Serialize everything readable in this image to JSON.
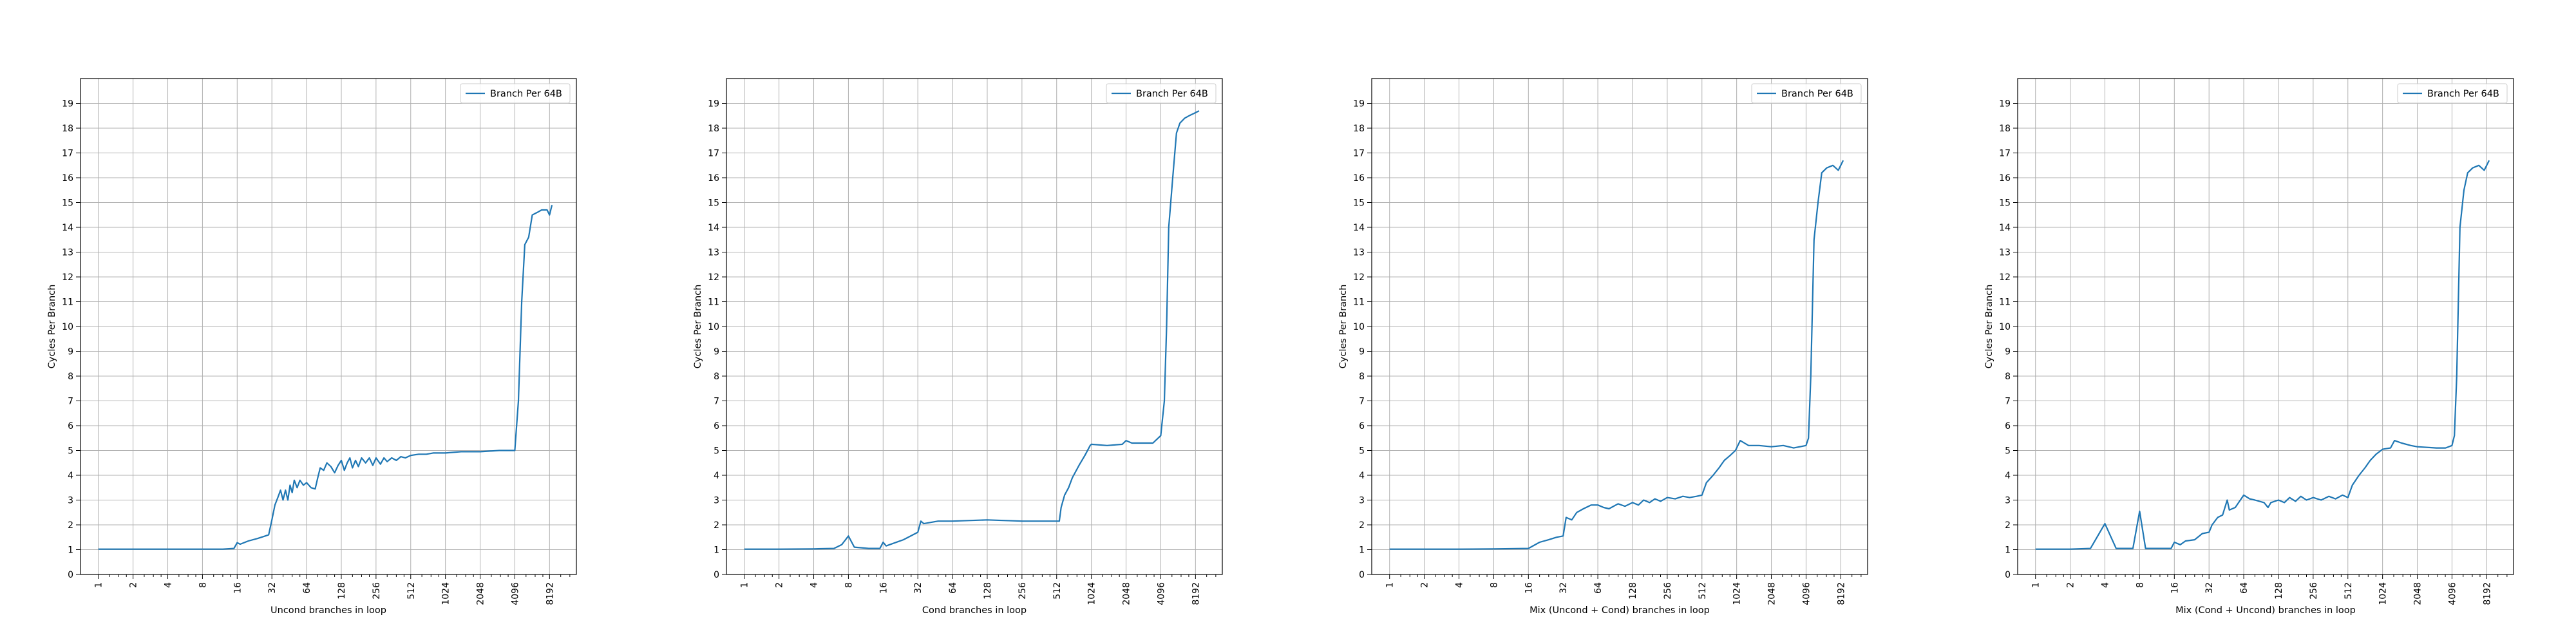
{
  "chart_data": [
    {
      "type": "line",
      "xlabel": "Uncond branches in loop",
      "ylabel": "Cycles Per Branch",
      "xscale": "log2",
      "xlim": [
        0.7,
        14000
      ],
      "ylim": [
        0,
        20
      ],
      "xticks": [
        1,
        2,
        4,
        8,
        16,
        32,
        64,
        128,
        256,
        512,
        1024,
        2048,
        4096,
        8192
      ],
      "yticks": [
        0,
        1,
        2,
        3,
        4,
        5,
        6,
        7,
        8,
        9,
        10,
        11,
        12,
        13,
        14,
        15,
        16,
        17,
        18,
        19
      ],
      "grid": true,
      "legend": "upper-right",
      "series": [
        {
          "name": "Branch Per 64B",
          "color": "#1f77b4",
          "points": [
            [
              1,
              1.02
            ],
            [
              2,
              1.02
            ],
            [
              4,
              1.02
            ],
            [
              8,
              1.02
            ],
            [
              12,
              1.02
            ],
            [
              15,
              1.05
            ],
            [
              16,
              1.28
            ],
            [
              17,
              1.22
            ],
            [
              20,
              1.35
            ],
            [
              24,
              1.45
            ],
            [
              28,
              1.55
            ],
            [
              30,
              1.6
            ],
            [
              32,
              2.2
            ],
            [
              34,
              2.8
            ],
            [
              36,
              3.1
            ],
            [
              38,
              3.4
            ],
            [
              40,
              3.0
            ],
            [
              42,
              3.4
            ],
            [
              44,
              3.0
            ],
            [
              46,
              3.6
            ],
            [
              48,
              3.3
            ],
            [
              50,
              3.8
            ],
            [
              53,
              3.5
            ],
            [
              56,
              3.8
            ],
            [
              60,
              3.6
            ],
            [
              64,
              3.7
            ],
            [
              70,
              3.5
            ],
            [
              76,
              3.45
            ],
            [
              80,
              3.9
            ],
            [
              84,
              4.3
            ],
            [
              90,
              4.2
            ],
            [
              96,
              4.5
            ],
            [
              104,
              4.35
            ],
            [
              112,
              4.1
            ],
            [
              120,
              4.4
            ],
            [
              128,
              4.6
            ],
            [
              136,
              4.2
            ],
            [
              144,
              4.5
            ],
            [
              152,
              4.7
            ],
            [
              160,
              4.3
            ],
            [
              170,
              4.6
            ],
            [
              180,
              4.35
            ],
            [
              192,
              4.7
            ],
            [
              208,
              4.5
            ],
            [
              224,
              4.7
            ],
            [
              240,
              4.4
            ],
            [
              256,
              4.7
            ],
            [
              280,
              4.45
            ],
            [
              300,
              4.7
            ],
            [
              320,
              4.55
            ],
            [
              350,
              4.7
            ],
            [
              384,
              4.6
            ],
            [
              420,
              4.75
            ],
            [
              460,
              4.7
            ],
            [
              512,
              4.8
            ],
            [
              600,
              4.85
            ],
            [
              700,
              4.85
            ],
            [
              800,
              4.9
            ],
            [
              1024,
              4.9
            ],
            [
              1400,
              4.95
            ],
            [
              2048,
              4.95
            ],
            [
              3000,
              5.0
            ],
            [
              4096,
              5.0
            ],
            [
              4400,
              7.0
            ],
            [
              4700,
              11.0
            ],
            [
              5000,
              13.3
            ],
            [
              5400,
              13.6
            ],
            [
              5800,
              14.5
            ],
            [
              6400,
              14.6
            ],
            [
              7000,
              14.7
            ],
            [
              7800,
              14.7
            ],
            [
              8192,
              14.5
            ],
            [
              8600,
              14.9
            ]
          ]
        }
      ]
    },
    {
      "type": "line",
      "xlabel": "Cond branches in loop",
      "ylabel": "Cycles Per Branch",
      "xscale": "log2",
      "xlim": [
        0.7,
        14000
      ],
      "ylim": [
        0,
        20
      ],
      "xticks": [
        1,
        2,
        4,
        8,
        16,
        32,
        64,
        128,
        256,
        512,
        1024,
        2048,
        4096,
        8192
      ],
      "yticks": [
        0,
        1,
        2,
        3,
        4,
        5,
        6,
        7,
        8,
        9,
        10,
        11,
        12,
        13,
        14,
        15,
        16,
        17,
        18,
        19
      ],
      "grid": true,
      "legend": "upper-right",
      "series": [
        {
          "name": "Branch Per 64B",
          "color": "#1f77b4",
          "points": [
            [
              1,
              1.02
            ],
            [
              2,
              1.02
            ],
            [
              4,
              1.03
            ],
            [
              6,
              1.05
            ],
            [
              7,
              1.2
            ],
            [
              8,
              1.55
            ],
            [
              9,
              1.1
            ],
            [
              12,
              1.05
            ],
            [
              15,
              1.05
            ],
            [
              16,
              1.3
            ],
            [
              17,
              1.15
            ],
            [
              24,
              1.4
            ],
            [
              32,
              1.7
            ],
            [
              34,
              2.15
            ],
            [
              36,
              2.05
            ],
            [
              48,
              2.15
            ],
            [
              64,
              2.15
            ],
            [
              128,
              2.2
            ],
            [
              256,
              2.15
            ],
            [
              512,
              2.15
            ],
            [
              540,
              2.15
            ],
            [
              560,
              2.7
            ],
            [
              600,
              3.2
            ],
            [
              650,
              3.5
            ],
            [
              700,
              3.9
            ],
            [
              800,
              4.4
            ],
            [
              900,
              4.8
            ],
            [
              1000,
              5.2
            ],
            [
              1024,
              5.25
            ],
            [
              1400,
              5.2
            ],
            [
              1900,
              5.25
            ],
            [
              2048,
              5.4
            ],
            [
              2300,
              5.3
            ],
            [
              3000,
              5.3
            ],
            [
              3500,
              5.3
            ],
            [
              4096,
              5.6
            ],
            [
              4400,
              7.0
            ],
            [
              4600,
              10.0
            ],
            [
              4800,
              14.0
            ],
            [
              5200,
              16.0
            ],
            [
              5600,
              17.8
            ],
            [
              6000,
              18.2
            ],
            [
              6600,
              18.4
            ],
            [
              7200,
              18.5
            ],
            [
              8000,
              18.6
            ],
            [
              8800,
              18.7
            ]
          ]
        }
      ]
    },
    {
      "type": "line",
      "xlabel": "Mix (Uncond + Cond) branches in loop",
      "ylabel": "Cycles Per Branch",
      "xscale": "log2",
      "xlim": [
        0.7,
        14000
      ],
      "ylim": [
        0,
        20
      ],
      "xticks": [
        1,
        2,
        4,
        8,
        16,
        32,
        64,
        128,
        256,
        512,
        1024,
        2048,
        4096,
        8192
      ],
      "yticks": [
        0,
        1,
        2,
        3,
        4,
        5,
        6,
        7,
        8,
        9,
        10,
        11,
        12,
        13,
        14,
        15,
        16,
        17,
        18,
        19
      ],
      "grid": true,
      "legend": "upper-right",
      "series": [
        {
          "name": "Branch Per 64B",
          "color": "#1f77b4",
          "points": [
            [
              1,
              1.02
            ],
            [
              2,
              1.02
            ],
            [
              4,
              1.02
            ],
            [
              8,
              1.03
            ],
            [
              16,
              1.05
            ],
            [
              20,
              1.3
            ],
            [
              24,
              1.4
            ],
            [
              28,
              1.5
            ],
            [
              32,
              1.55
            ],
            [
              34,
              2.3
            ],
            [
              38,
              2.2
            ],
            [
              42,
              2.5
            ],
            [
              48,
              2.65
            ],
            [
              56,
              2.8
            ],
            [
              64,
              2.8
            ],
            [
              72,
              2.7
            ],
            [
              80,
              2.65
            ],
            [
              96,
              2.85
            ],
            [
              110,
              2.75
            ],
            [
              128,
              2.9
            ],
            [
              144,
              2.8
            ],
            [
              160,
              3.0
            ],
            [
              180,
              2.9
            ],
            [
              200,
              3.05
            ],
            [
              224,
              2.95
            ],
            [
              256,
              3.1
            ],
            [
              300,
              3.05
            ],
            [
              350,
              3.15
            ],
            [
              400,
              3.1
            ],
            [
              460,
              3.15
            ],
            [
              512,
              3.2
            ],
            [
              560,
              3.7
            ],
            [
              640,
              4.0
            ],
            [
              720,
              4.3
            ],
            [
              800,
              4.6
            ],
            [
              900,
              4.8
            ],
            [
              1000,
              5.0
            ],
            [
              1100,
              5.4
            ],
            [
              1300,
              5.2
            ],
            [
              1600,
              5.2
            ],
            [
              2048,
              5.15
            ],
            [
              2600,
              5.2
            ],
            [
              3200,
              5.1
            ],
            [
              4096,
              5.2
            ],
            [
              4300,
              5.5
            ],
            [
              4500,
              8.0
            ],
            [
              4800,
              13.5
            ],
            [
              5200,
              15.0
            ],
            [
              5600,
              16.2
            ],
            [
              6200,
              16.4
            ],
            [
              7000,
              16.5
            ],
            [
              7800,
              16.3
            ],
            [
              8192,
              16.5
            ],
            [
              8600,
              16.7
            ]
          ]
        }
      ]
    },
    {
      "type": "line",
      "xlabel": "Mix (Cond + Uncond) branches in loop",
      "ylabel": "Cycles Per Branch",
      "xscale": "log2",
      "xlim": [
        0.7,
        14000
      ],
      "ylim": [
        0,
        20
      ],
      "xticks": [
        1,
        2,
        4,
        8,
        16,
        32,
        64,
        128,
        256,
        512,
        1024,
        2048,
        4096,
        8192
      ],
      "yticks": [
        0,
        1,
        2,
        3,
        4,
        5,
        6,
        7,
        8,
        9,
        10,
        11,
        12,
        13,
        14,
        15,
        16,
        17,
        18,
        19
      ],
      "grid": true,
      "legend": "upper-right",
      "series": [
        {
          "name": "Branch Per 64B",
          "color": "#1f77b4",
          "points": [
            [
              1,
              1.02
            ],
            [
              2,
              1.02
            ],
            [
              3,
              1.05
            ],
            [
              4,
              2.05
            ],
            [
              5,
              1.05
            ],
            [
              6,
              1.05
            ],
            [
              7,
              1.05
            ],
            [
              8,
              2.55
            ],
            [
              9,
              1.05
            ],
            [
              12,
              1.05
            ],
            [
              15,
              1.05
            ],
            [
              16,
              1.3
            ],
            [
              18,
              1.2
            ],
            [
              20,
              1.35
            ],
            [
              24,
              1.4
            ],
            [
              28,
              1.65
            ],
            [
              32,
              1.7
            ],
            [
              34,
              2.0
            ],
            [
              38,
              2.3
            ],
            [
              42,
              2.4
            ],
            [
              46,
              3.0
            ],
            [
              48,
              2.6
            ],
            [
              54,
              2.7
            ],
            [
              64,
              3.2
            ],
            [
              72,
              3.05
            ],
            [
              80,
              3.0
            ],
            [
              96,
              2.9
            ],
            [
              104,
              2.7
            ],
            [
              110,
              2.9
            ],
            [
              128,
              3.0
            ],
            [
              144,
              2.9
            ],
            [
              160,
              3.1
            ],
            [
              180,
              2.95
            ],
            [
              200,
              3.15
            ],
            [
              224,
              3.0
            ],
            [
              256,
              3.1
            ],
            [
              300,
              3.0
            ],
            [
              350,
              3.15
            ],
            [
              400,
              3.05
            ],
            [
              460,
              3.2
            ],
            [
              512,
              3.1
            ],
            [
              560,
              3.6
            ],
            [
              640,
              4.0
            ],
            [
              720,
              4.3
            ],
            [
              800,
              4.6
            ],
            [
              900,
              4.85
            ],
            [
              1024,
              5.05
            ],
            [
              1200,
              5.1
            ],
            [
              1300,
              5.4
            ],
            [
              1500,
              5.3
            ],
            [
              1800,
              5.2
            ],
            [
              2048,
              5.15
            ],
            [
              3000,
              5.1
            ],
            [
              3600,
              5.1
            ],
            [
              4096,
              5.2
            ],
            [
              4300,
              5.6
            ],
            [
              4500,
              8.0
            ],
            [
              4800,
              14.0
            ],
            [
              5200,
              15.5
            ],
            [
              5600,
              16.2
            ],
            [
              6200,
              16.4
            ],
            [
              7000,
              16.5
            ],
            [
              7800,
              16.3
            ],
            [
              8192,
              16.5
            ],
            [
              8600,
              16.7
            ]
          ]
        }
      ]
    }
  ]
}
